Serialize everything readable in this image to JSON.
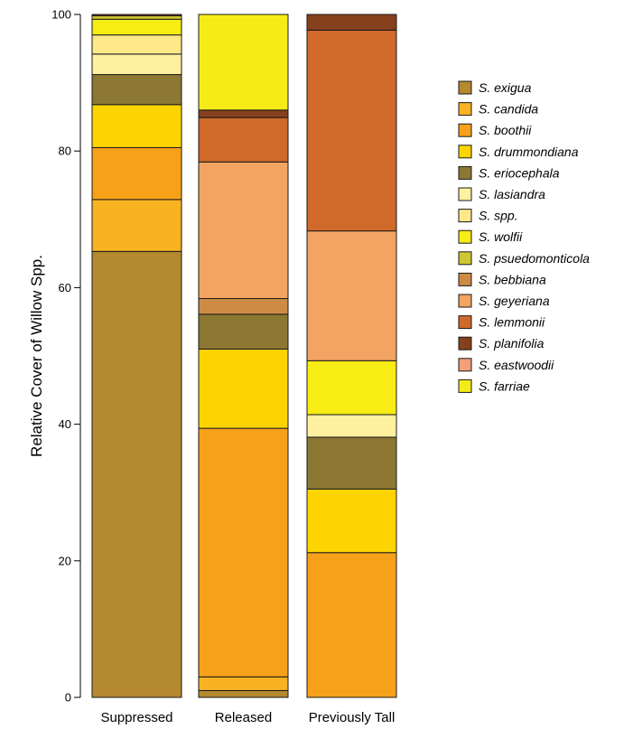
{
  "chart_data": {
    "type": "bar",
    "stacked": true,
    "ylabel": "Relative Cover of Willow Spp.",
    "xlabel": "",
    "ylim": [
      0,
      100
    ],
    "yticks": [
      0,
      20,
      40,
      60,
      80,
      100
    ],
    "categories": [
      "Suppressed",
      "Released",
      "Previously Tall"
    ],
    "series": [
      {
        "name": "S. exigua",
        "color": "#b5892e",
        "values": [
          65.3,
          1.0,
          0.0
        ]
      },
      {
        "name": "S. candida",
        "color": "#f9b222",
        "values": [
          7.6,
          2.0,
          0.0
        ]
      },
      {
        "name": "S. boothii",
        "color": "#f7a11a",
        "values": [
          7.6,
          36.4,
          21.2
        ]
      },
      {
        "name": "S. drummondiana",
        "color": "#fdd400",
        "values": [
          6.3,
          11.6,
          9.3
        ]
      },
      {
        "name": "S. eriocephala",
        "color": "#8c7733",
        "values": [
          4.4,
          5.1,
          7.6
        ]
      },
      {
        "name": "S. lasiandra",
        "color": "#fff0a0",
        "values": [
          3.0,
          0.0,
          3.3
        ]
      },
      {
        "name": "S. spp.",
        "color": "#ffe88a",
        "values": [
          2.8,
          0.0,
          0.0
        ]
      },
      {
        "name": "S. wolfii",
        "color": "#f7ec14",
        "values": [
          2.3,
          0.0,
          7.9
        ]
      },
      {
        "name": "S. psuedomonticola",
        "color": "#cfc732",
        "values": [
          0.5,
          0.0,
          0.0
        ]
      },
      {
        "name": "S. bebbiana",
        "color": "#cd8b46",
        "values": [
          0.0,
          2.3,
          0.0
        ]
      },
      {
        "name": "S. geyeriana",
        "color": "#f3a463",
        "values": [
          0.0,
          20.0,
          19.0
        ]
      },
      {
        "name": "S. lemmonii",
        "color": "#d0692a",
        "values": [
          0.0,
          6.5,
          29.4
        ]
      },
      {
        "name": "S. planifolia",
        "color": "#86401d",
        "values": [
          0.2,
          1.1,
          2.3
        ]
      },
      {
        "name": "S. eastwoodii",
        "color": "#f39f7b",
        "values": [
          0.0,
          0.0,
          0.0
        ]
      },
      {
        "name": "S. farriae",
        "color": "#f5ec17",
        "values": [
          0.0,
          14.0,
          0.0
        ]
      }
    ],
    "grid": false,
    "legend_position": "right"
  }
}
